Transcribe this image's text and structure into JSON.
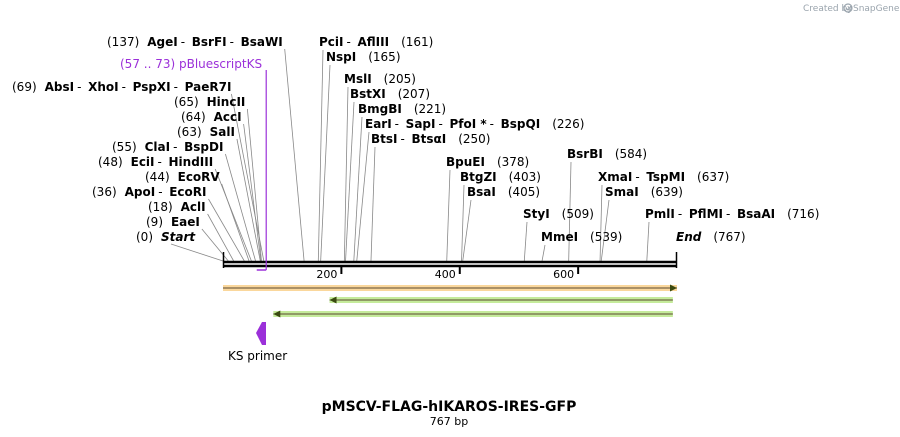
{
  "credit": {
    "text": "Created by",
    "brand": "SnapGene"
  },
  "title": "pMSCV-FLAG-hIKAROS-IRES-GFP",
  "subtitle": "767 bp",
  "sequence_length": 767,
  "ticks": [
    200,
    400,
    600
  ],
  "colors": {
    "feature_purple": "#9b30d9",
    "orange_feature": "#f5a623",
    "green_feature": "#7ed321",
    "backbone": "#000000"
  },
  "primer": {
    "label": "(57 .. 73)  pBluescriptKS",
    "name": "KS primer",
    "start": 57,
    "end": 73
  },
  "site_groups": [
    {
      "pos": 0,
      "names": [
        "Start"
      ],
      "italic": true,
      "poslabel": "(0)"
    },
    {
      "pos": 9,
      "names": [
        "EaeI"
      ],
      "poslabel": "(9)"
    },
    {
      "pos": 18,
      "names": [
        "AclI"
      ],
      "poslabel": "(18)"
    },
    {
      "pos": 36,
      "names": [
        "ApoI",
        "EcoRI"
      ],
      "poslabel": "(36)"
    },
    {
      "pos": 44,
      "names": [
        "EcoRV"
      ],
      "poslabel": "(44)"
    },
    {
      "pos": 48,
      "names": [
        "EciI",
        "HindIII"
      ],
      "poslabel": "(48)"
    },
    {
      "pos": 55,
      "names": [
        "ClaI",
        "BspDI"
      ],
      "poslabel": "(55)"
    },
    {
      "pos": 63,
      "names": [
        "SalI"
      ],
      "poslabel": "(63)"
    },
    {
      "pos": 64,
      "names": [
        "AccI"
      ],
      "poslabel": "(64)"
    },
    {
      "pos": 65,
      "names": [
        "HincII"
      ],
      "poslabel": "(65)"
    },
    {
      "pos": 69,
      "names": [
        "AbsI",
        "XhoI",
        "PspXI",
        "PaeR7I"
      ],
      "poslabel": "(69)"
    },
    {
      "pos": 137,
      "names": [
        "AgeI",
        "BsrFI",
        "BsaWI"
      ],
      "poslabel": "(137)"
    },
    {
      "pos": 161,
      "names": [
        "PciI",
        "AflIII"
      ],
      "poslabel": "(161)"
    },
    {
      "pos": 165,
      "names": [
        "NspI"
      ],
      "poslabel": "(165)"
    },
    {
      "pos": 205,
      "names": [
        "MslI"
      ],
      "poslabel": "(205)"
    },
    {
      "pos": 207,
      "names": [
        "BstXI"
      ],
      "poslabel": "(207)"
    },
    {
      "pos": 221,
      "names": [
        "BmgBI"
      ],
      "poslabel": "(221)"
    },
    {
      "pos": 226,
      "names": [
        "EarI",
        "SapI",
        "PfoI *",
        "BspQI"
      ],
      "poslabel": "(226)"
    },
    {
      "pos": 250,
      "names": [
        "BtsI",
        "BtsαI"
      ],
      "poslabel": "(250)"
    },
    {
      "pos": 378,
      "names": [
        "BpuEI"
      ],
      "poslabel": "(378)"
    },
    {
      "pos": 403,
      "names": [
        "BtgZI"
      ],
      "poslabel": "(403)"
    },
    {
      "pos": 405,
      "names": [
        "BsaI"
      ],
      "poslabel": "(405)"
    },
    {
      "pos": 509,
      "names": [
        "StyI"
      ],
      "poslabel": "(509)"
    },
    {
      "pos": 539,
      "names": [
        "MmeI"
      ],
      "poslabel": "(539)"
    },
    {
      "pos": 584,
      "names": [
        "BsrBI"
      ],
      "poslabel": "(584)"
    },
    {
      "pos": 637,
      "names": [
        "XmaI",
        "TspMI"
      ],
      "poslabel": "(637)"
    },
    {
      "pos": 639,
      "names": [
        "SmaI"
      ],
      "poslabel": "(639)"
    },
    {
      "pos": 716,
      "names": [
        "PmlI",
        "PflMI",
        "BsaAI"
      ],
      "poslabel": "(716)"
    },
    {
      "pos": 767,
      "names": [
        "End"
      ],
      "italic": true,
      "poslabel": "(767)"
    }
  ],
  "features": [
    {
      "name": "orange-feature",
      "start": 0,
      "end": 767,
      "direction": "forward",
      "color": "#f5a623"
    },
    {
      "name": "green-feature-1",
      "start": 180,
      "end": 760,
      "direction": "reverse",
      "color": "#7ed321"
    },
    {
      "name": "green-feature-2",
      "start": 85,
      "end": 760,
      "direction": "reverse",
      "color": "#7ed321"
    }
  ]
}
